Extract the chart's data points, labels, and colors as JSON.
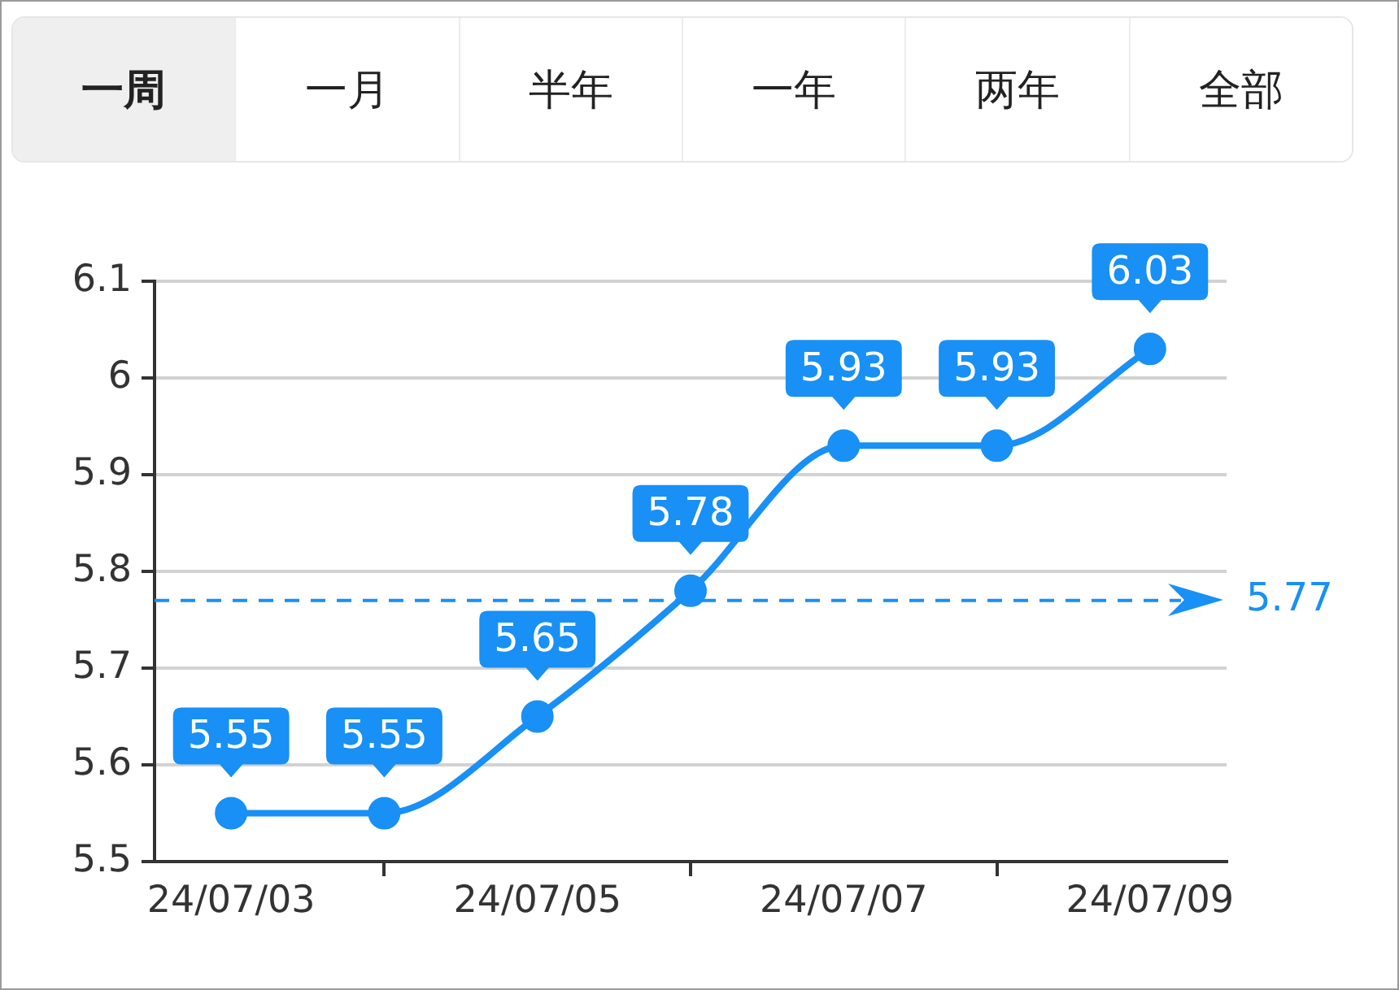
{
  "chart_data": {
    "type": "line",
    "categories": [
      "24/07/03",
      null,
      "24/07/05",
      null,
      "24/07/07",
      null,
      "24/07/09"
    ],
    "series": [
      {
        "color": "#1890f5",
        "values": [
          5.55,
          5.55,
          5.65,
          5.78,
          5.93,
          5.93,
          6.03
        ]
      }
    ],
    "ylim": [
      5.5,
      6.1
    ],
    "yticks": [
      5.5,
      5.6,
      5.7,
      5.8,
      5.9,
      6,
      6.1
    ],
    "grid": "y",
    "legend": false,
    "marker": "circle",
    "line_style": "solid",
    "data_labels": true,
    "ref_lines": [
      {
        "axis": "y",
        "value": 5.77,
        "label": "5.77",
        "color": "#1890f5",
        "line_style": "dashed"
      }
    ],
    "annotations": [
      "一周",
      "一月",
      "半年",
      "一年",
      "两年",
      "全部"
    ]
  }
}
